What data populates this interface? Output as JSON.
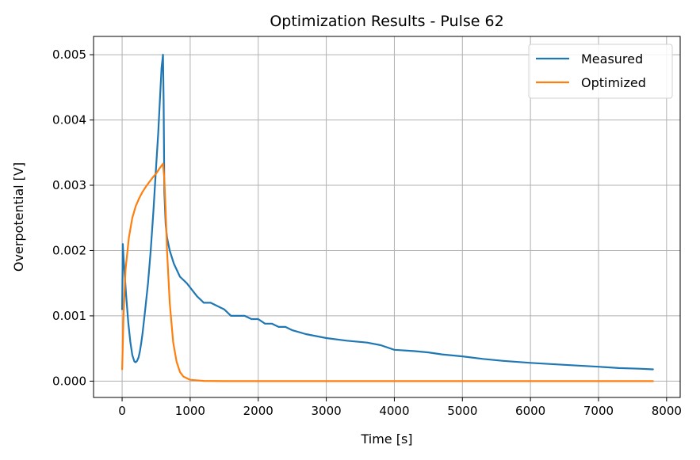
{
  "chart_data": {
    "type": "line",
    "title": "Optimization Results - Pulse 62",
    "xlabel": "Time [s]",
    "ylabel": "Overpotential [V]",
    "xlim": [
      -420,
      8200
    ],
    "ylim": [
      -0.00025,
      0.00528
    ],
    "xticks": [
      0,
      1000,
      2000,
      3000,
      4000,
      5000,
      6000,
      7000,
      8000
    ],
    "xtick_labels": [
      "0",
      "1000",
      "2000",
      "3000",
      "4000",
      "5000",
      "6000",
      "7000",
      "8000"
    ],
    "yticks": [
      0,
      0.001,
      0.002,
      0.003,
      0.004,
      0.005
    ],
    "ytick_labels": [
      "0.000",
      "0.001",
      "0.002",
      "0.003",
      "0.004",
      "0.005"
    ],
    "grid": true,
    "legend_position": "top-right",
    "series": [
      {
        "name": "Measured",
        "color": "#1f77b4",
        "x": [
          0,
          10,
          20,
          40,
          60,
          90,
          120,
          150,
          180,
          200,
          220,
          240,
          260,
          280,
          300,
          340,
          380,
          420,
          460,
          500,
          530,
          560,
          580,
          600,
          610,
          620,
          640,
          660,
          700,
          760,
          850,
          950,
          1100,
          1200,
          1300,
          1500,
          1600,
          1700,
          1800,
          1900,
          2000,
          2100,
          2200,
          2300,
          2400,
          2500,
          2700,
          3000,
          3300,
          3600,
          3800,
          4000,
          4300,
          4500,
          4700,
          5000,
          5300,
          5600,
          6000,
          6500,
          7000,
          7300,
          7600,
          7800
        ],
        "y": [
          0.0011,
          0.0021,
          0.0019,
          0.0016,
          0.0013,
          0.0009,
          0.0006,
          0.0004,
          0.0003,
          0.00029,
          0.00031,
          0.00036,
          0.00045,
          0.00058,
          0.00073,
          0.0011,
          0.0015,
          0.002,
          0.0026,
          0.0033,
          0.0038,
          0.0044,
          0.0048,
          0.005,
          0.0043,
          0.0029,
          0.0024,
          0.0022,
          0.002,
          0.0018,
          0.0016,
          0.0015,
          0.0013,
          0.0012,
          0.0012,
          0.0011,
          0.001,
          0.001,
          0.001,
          0.00095,
          0.00095,
          0.00088,
          0.00088,
          0.00083,
          0.00083,
          0.00078,
          0.00072,
          0.00066,
          0.00062,
          0.00059,
          0.00055,
          0.00048,
          0.00046,
          0.00044,
          0.00041,
          0.00038,
          0.00034,
          0.00031,
          0.00028,
          0.00025,
          0.00022,
          0.0002,
          0.00019,
          0.00018
        ]
      },
      {
        "name": "Optimized",
        "color": "#ff7f0e",
        "x": [
          0,
          20,
          50,
          100,
          150,
          200,
          250,
          300,
          350,
          400,
          450,
          500,
          550,
          600,
          620,
          640,
          660,
          700,
          750,
          800,
          850,
          900,
          1000,
          1200,
          1500,
          2000,
          3000,
          4000,
          5000,
          6000,
          7000,
          7800
        ],
        "y": [
          0.00018,
          0.001,
          0.0017,
          0.0022,
          0.0025,
          0.00268,
          0.0028,
          0.0029,
          0.00298,
          0.00305,
          0.00312,
          0.00318,
          0.00326,
          0.00333,
          0.0031,
          0.0026,
          0.002,
          0.0012,
          0.0006,
          0.0003,
          0.00014,
          7e-05,
          2e-05,
          3e-06,
          0.0,
          0.0,
          0.0,
          0.0,
          0.0,
          0.0,
          0.0,
          0.0
        ]
      }
    ]
  }
}
